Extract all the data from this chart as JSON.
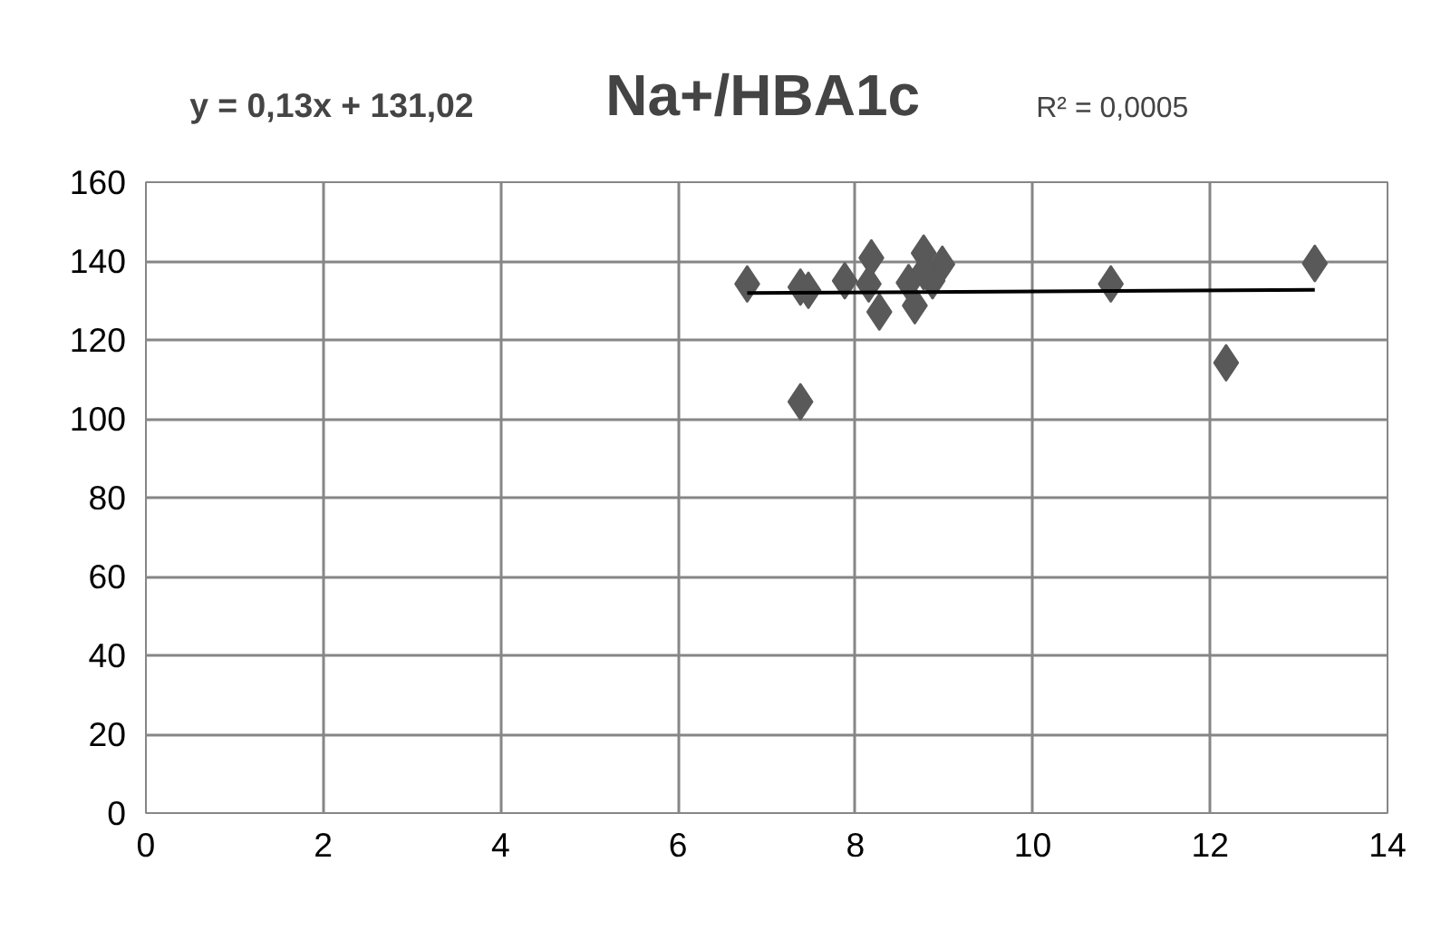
{
  "chart_data": {
    "type": "scatter",
    "title": "Na+/HBA1c",
    "annotations": [
      "y = 0,13x + 131,02",
      "R² = 0,0005"
    ],
    "xlim": [
      0,
      14
    ],
    "xticks": [
      0,
      2,
      4,
      6,
      8,
      10,
      12,
      14
    ],
    "ylim": [
      0,
      160
    ],
    "yticks": [
      0,
      20,
      40,
      60,
      80,
      100,
      120,
      140,
      160
    ],
    "grid": true,
    "marker": "diamond",
    "series": [
      {
        "color": "#595959",
        "x": [
          6.78,
          7.38,
          7.47,
          7.38,
          7.88,
          8.18,
          8.27,
          8.15,
          8.67,
          8.6,
          8.77,
          8.98,
          8.87,
          8.77,
          10.88,
          12.18,
          13.18
        ],
        "values": [
          134.2,
          133.4,
          132.6,
          104.3,
          135,
          140.8,
          127.1,
          134.2,
          128.7,
          134.5,
          142,
          139.2,
          135,
          137.3,
          134.2,
          114.2,
          139.4
        ]
      },
      {
        "type": "line",
        "marker": "none",
        "color": "#000000",
        "x": [
          6.78,
          13.18
        ],
        "values": [
          131.9,
          132.7
        ]
      }
    ]
  }
}
